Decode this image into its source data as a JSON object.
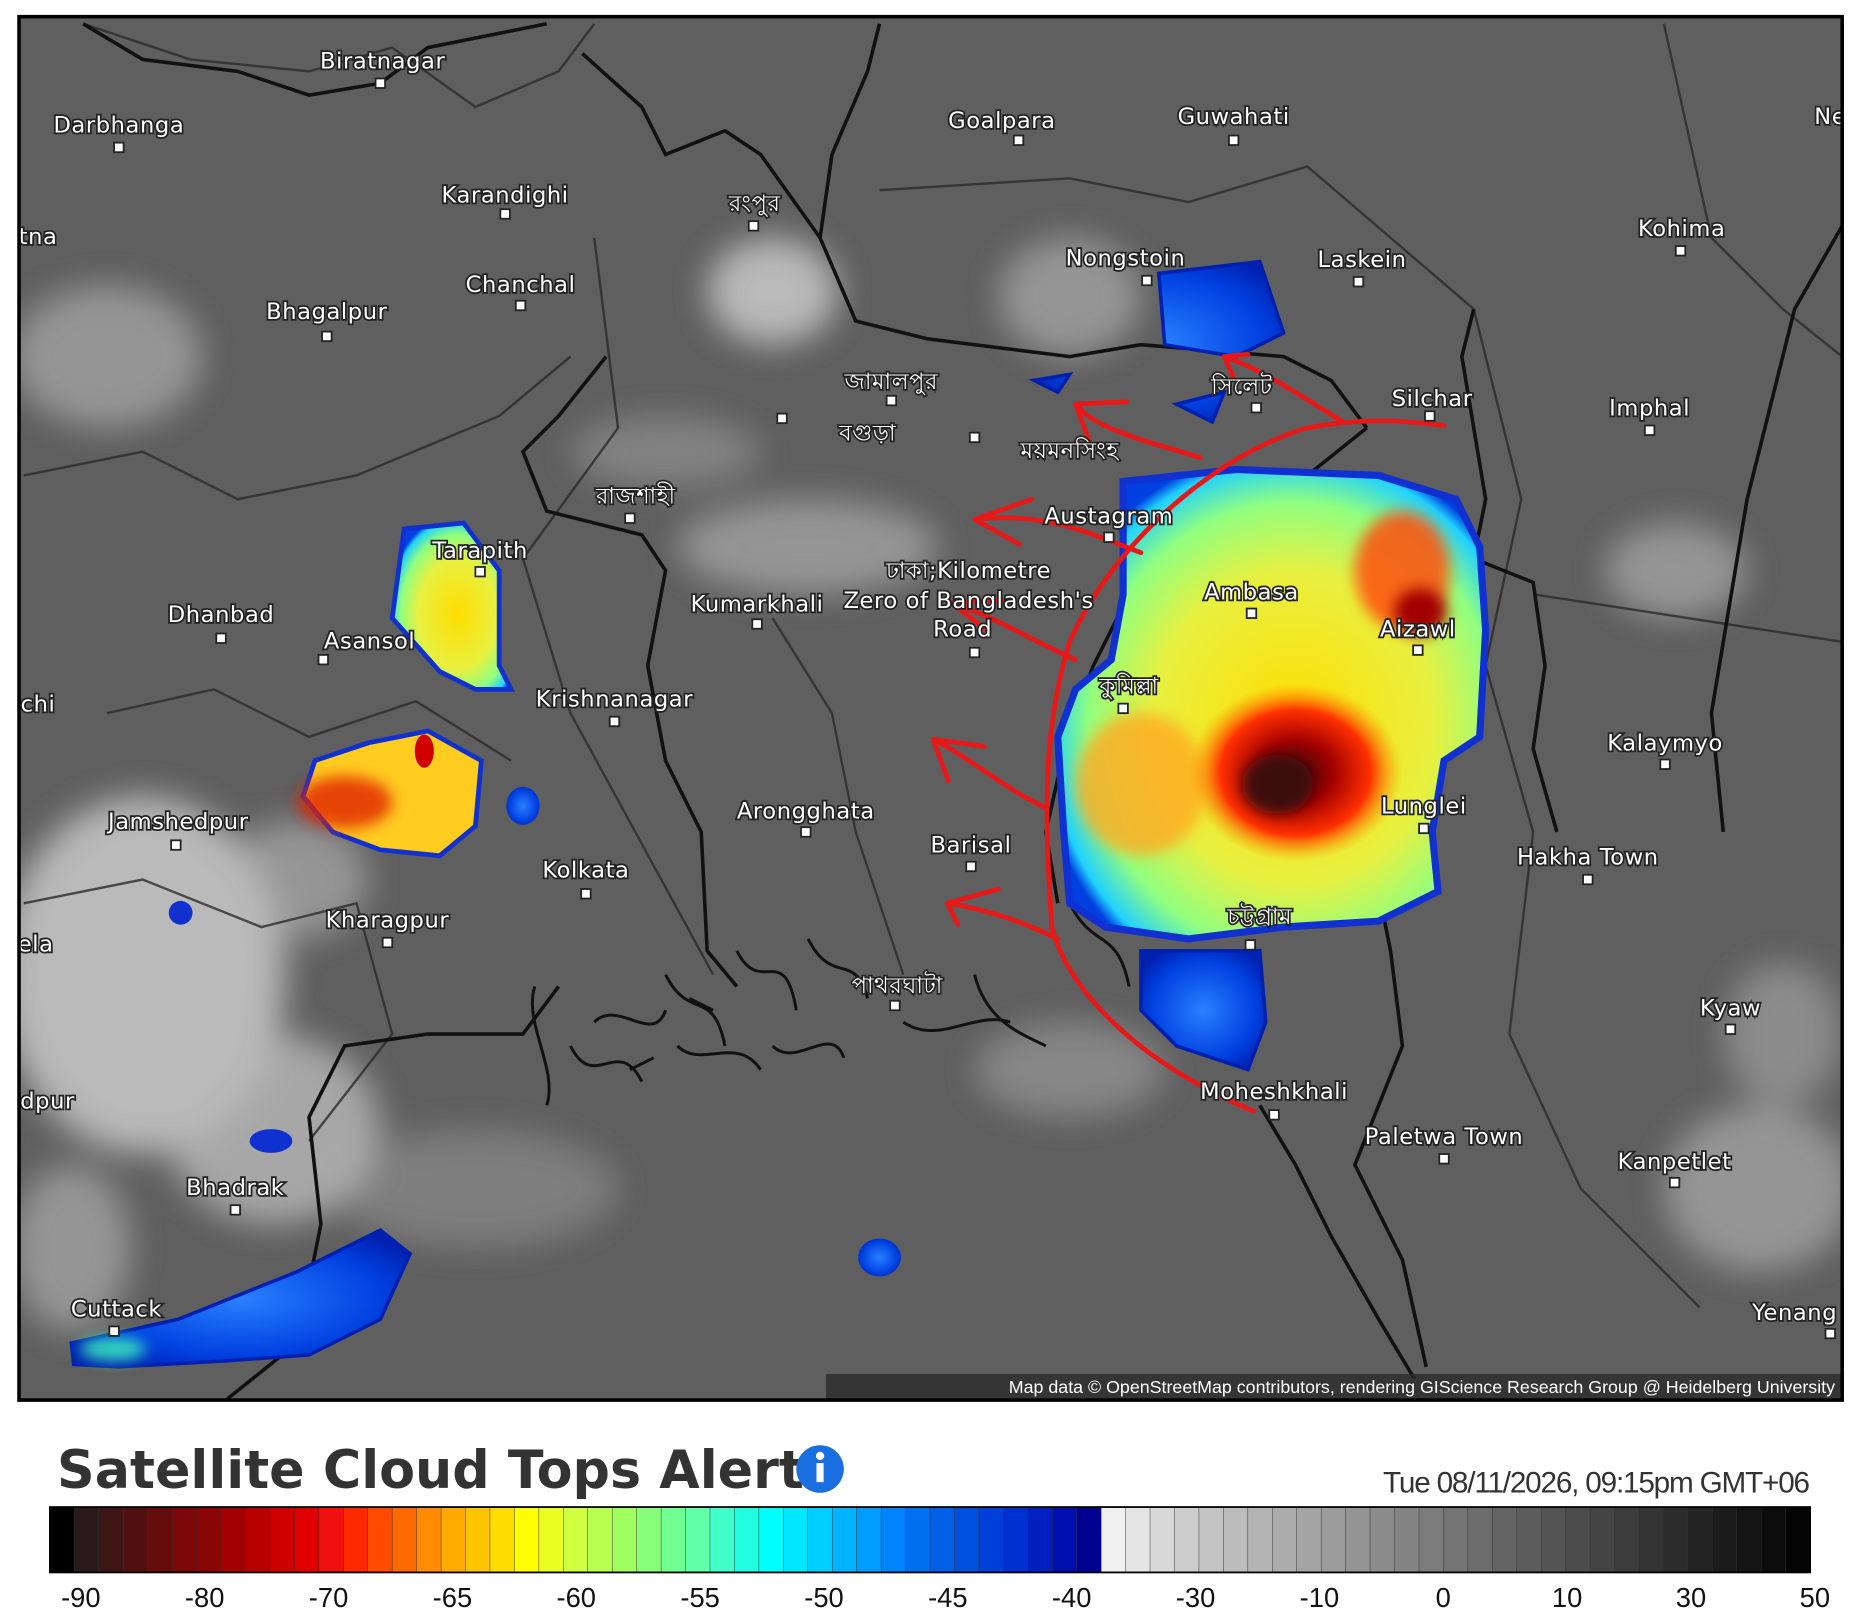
{
  "map": {
    "labels": [
      {
        "text": "Biratnagar"
      },
      {
        "text": "Darbhanga"
      },
      {
        "text": "Goalpara"
      },
      {
        "text": "Guwahati"
      },
      {
        "text": "Karandighi"
      },
      {
        "text": "রংপুর"
      },
      {
        "text": "Nongstoin"
      },
      {
        "text": "Laskein"
      },
      {
        "text": "Kohima"
      },
      {
        "text": "Chanchal"
      },
      {
        "text": "Bhagalpur"
      },
      {
        "text": "Silchar"
      },
      {
        "text": "Imphal"
      },
      {
        "text": "জামালপুর"
      },
      {
        "text": "সিলেট"
      },
      {
        "text": "বগুড়া"
      },
      {
        "text": "ময়মনসিংহ"
      },
      {
        "text": "রাজশাহী"
      },
      {
        "text": "Austagram"
      },
      {
        "text": "Tarapith"
      },
      {
        "text": "ঢাকা;Kilometre"
      },
      {
        "text": "Zero of Bangladesh's"
      },
      {
        "text": "Road"
      },
      {
        "text": "Ambasa"
      },
      {
        "text": "Dhanbad"
      },
      {
        "text": "Kumarkhali"
      },
      {
        "text": "Aizawl"
      },
      {
        "text": "Asansol"
      },
      {
        "text": "কুমিল্লা"
      },
      {
        "text": "Krishnanagar"
      },
      {
        "text": "Kalaymyo"
      },
      {
        "text": "Jamshedpur"
      },
      {
        "text": "Arongghata"
      },
      {
        "text": "Lunglei"
      },
      {
        "text": "Barisal"
      },
      {
        "text": "Hakha Town"
      },
      {
        "text": "Kolkata"
      },
      {
        "text": "চট্টগ্রাম"
      },
      {
        "text": "Kharagpur"
      },
      {
        "text": "পাথরঘাটা"
      },
      {
        "text": "Kyaw"
      },
      {
        "text": "Moheshkhali"
      },
      {
        "text": "Paletwa Town"
      },
      {
        "text": "Kanpetlet"
      },
      {
        "text": "Bhadrak"
      },
      {
        "text": "Cuttack"
      },
      {
        "text": "Yenang"
      },
      {
        "text": "tna"
      },
      {
        "text": "chi"
      },
      {
        "text": "ela"
      },
      {
        "text": "dpur"
      },
      {
        "text": "Ne"
      }
    ],
    "attribution": "Map data © OpenStreetMap contributors, rendering GIScience Research Group @ Heidelberg University"
  },
  "legend": {
    "title": "Satellite Cloud Tops Alert",
    "timestamp": "Tue 08/11/2026, 09:15pm GMT+06",
    "ticks": [
      -90,
      -80,
      -70,
      -65,
      -60,
      -55,
      -50,
      -45,
      -40,
      -30,
      -10,
      0,
      10,
      30,
      50
    ],
    "colors": [
      "#000000",
      "#2a1a1a",
      "#3d1515",
      "#501010",
      "#650c0c",
      "#7a0808",
      "#8a0505",
      "#a00000",
      "#b80000",
      "#d00000",
      "#e00000",
      "#f01010",
      "#ff2a00",
      "#ff4a00",
      "#ff6a00",
      "#ff8c00",
      "#ffaa00",
      "#ffc400",
      "#ffdc00",
      "#ffff00",
      "#e8ff20",
      "#d0ff40",
      "#b8ff50",
      "#a0ff60",
      "#88ff78",
      "#70ff90",
      "#60ffa8",
      "#40ffc8",
      "#20ffe0",
      "#00ffff",
      "#00e8ff",
      "#00d0ff",
      "#00b4ff",
      "#009cff",
      "#0084ff",
      "#0070f0",
      "#0060e8",
      "#0050e0",
      "#0040d8",
      "#0030d0",
      "#0020c0",
      "#0010b0",
      "#000090",
      "#f0f0f0",
      "#e4e4e4",
      "#d8d8d8",
      "#cccccc",
      "#c4c4c4",
      "#bcbcbc",
      "#b4b4b4",
      "#acacac",
      "#a4a4a4",
      "#9c9c9c",
      "#949494",
      "#8c8c8c",
      "#848484",
      "#7c7c7c",
      "#747474",
      "#6c6c6c",
      "#646464",
      "#5c5c5c",
      "#545454",
      "#4c4c4c",
      "#444444",
      "#3c3c3c",
      "#343434",
      "#2c2c2c",
      "#242424",
      "#1c1c1c",
      "#141414",
      "#0c0c0c",
      "#040404"
    ]
  }
}
